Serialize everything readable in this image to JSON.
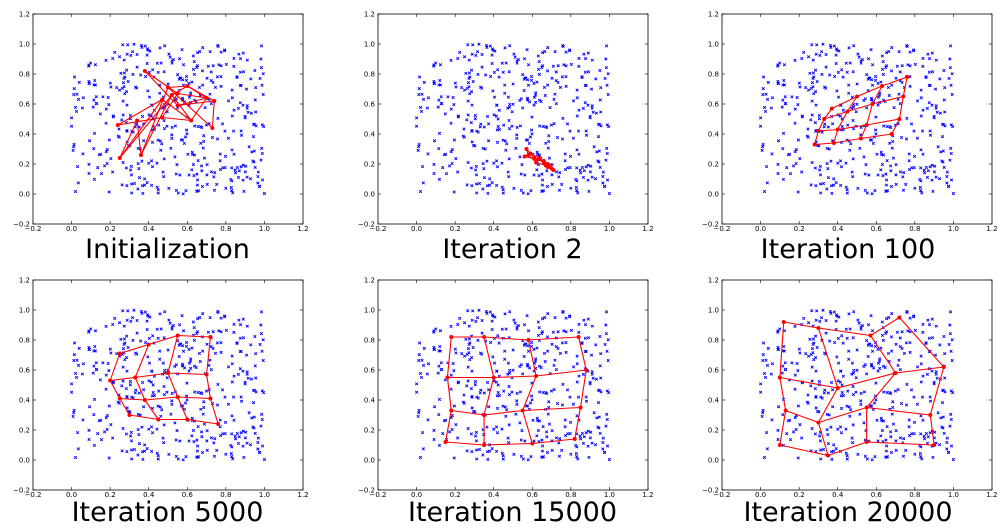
{
  "chart_data": [
    {
      "type": "scatter",
      "title": "Initialization",
      "xlim": [
        -0.2,
        1.2
      ],
      "ylim": [
        -0.2,
        1.2
      ],
      "xticks": [
        "−0.2",
        "0.0",
        "0.2",
        "0.4",
        "0.6",
        "0.8",
        "1.0",
        "1.2"
      ],
      "yticks": [
        "−0.2",
        "0.0",
        "0.2",
        "0.4",
        "0.6",
        "0.8",
        "1.0",
        "1.2"
      ],
      "grid": false,
      "series": [
        {
          "marker": "x",
          "color": "#0000ff",
          "distribution": "uniform",
          "count": 420,
          "x_range": [
            0.0,
            1.0
          ],
          "y_range": [
            0.0,
            1.0
          ]
        },
        {
          "marker": "o-",
          "color": "#ff0000",
          "grid_shape": [
            4,
            4
          ],
          "nodes": [
            [
              0.24,
              0.46
            ],
            [
              0.47,
              0.51
            ],
            [
              0.55,
              0.67
            ],
            [
              0.38,
              0.82
            ],
            [
              0.47,
              0.63
            ],
            [
              0.62,
              0.49
            ],
            [
              0.7,
              0.64
            ],
            [
              0.55,
              0.59
            ],
            [
              0.25,
              0.24
            ],
            [
              0.52,
              0.66
            ],
            [
              0.6,
              0.72
            ],
            [
              0.74,
              0.62
            ],
            [
              0.34,
              0.49
            ],
            [
              0.36,
              0.26
            ],
            [
              0.5,
              0.71
            ],
            [
              0.73,
              0.44
            ]
          ]
        }
      ]
    },
    {
      "type": "scatter",
      "title": "Iteration 2",
      "xlim": [
        -0.2,
        1.2
      ],
      "ylim": [
        -0.2,
        1.2
      ],
      "xticks": [
        "−0.2",
        "0.0",
        "0.2",
        "0.4",
        "0.6",
        "0.8",
        "1.0",
        "1.2"
      ],
      "yticks": [
        "−0.2",
        "0.0",
        "0.2",
        "0.4",
        "0.6",
        "0.8",
        "1.0",
        "1.2"
      ],
      "grid": false,
      "series": [
        {
          "marker": "x",
          "color": "#0000ff",
          "distribution": "uniform",
          "count": 420,
          "x_range": [
            0.0,
            1.0
          ],
          "y_range": [
            0.0,
            1.0
          ]
        },
        {
          "marker": "o-",
          "color": "#ff0000",
          "grid_shape": [
            4,
            4
          ],
          "nodes": [
            [
              0.57,
              0.3
            ],
            [
              0.61,
              0.24
            ],
            [
              0.66,
              0.22
            ],
            [
              0.69,
              0.19
            ],
            [
              0.58,
              0.26
            ],
            [
              0.62,
              0.21
            ],
            [
              0.67,
              0.19
            ],
            [
              0.7,
              0.17
            ],
            [
              0.56,
              0.25
            ],
            [
              0.63,
              0.23
            ],
            [
              0.68,
              0.2
            ],
            [
              0.71,
              0.16
            ],
            [
              0.59,
              0.27
            ],
            [
              0.64,
              0.24
            ],
            [
              0.66,
              0.21
            ],
            [
              0.68,
              0.18
            ]
          ]
        }
      ]
    },
    {
      "type": "scatter",
      "title": "Iteration 100",
      "xlim": [
        -0.2,
        1.2
      ],
      "ylim": [
        -0.2,
        1.2
      ],
      "xticks": [
        "−0.2",
        "0.0",
        "0.2",
        "0.4",
        "0.6",
        "0.8",
        "1.0",
        "1.2"
      ],
      "yticks": [
        "−0.2",
        "0.0",
        "0.2",
        "0.4",
        "0.6",
        "0.8",
        "1.0",
        "1.2"
      ],
      "grid": false,
      "series": [
        {
          "marker": "x",
          "color": "#0000ff",
          "distribution": "uniform",
          "count": 420,
          "x_range": [
            0.0,
            1.0
          ],
          "y_range": [
            0.0,
            1.0
          ]
        },
        {
          "marker": "o-",
          "color": "#ff0000",
          "grid_shape": [
            4,
            4
          ],
          "nodes": [
            [
              0.28,
              0.33
            ],
            [
              0.38,
              0.34
            ],
            [
              0.52,
              0.37
            ],
            [
              0.68,
              0.4
            ],
            [
              0.3,
              0.42
            ],
            [
              0.4,
              0.43
            ],
            [
              0.55,
              0.46
            ],
            [
              0.72,
              0.5
            ],
            [
              0.33,
              0.5
            ],
            [
              0.45,
              0.55
            ],
            [
              0.58,
              0.6
            ],
            [
              0.74,
              0.65
            ],
            [
              0.37,
              0.57
            ],
            [
              0.5,
              0.65
            ],
            [
              0.63,
              0.72
            ],
            [
              0.76,
              0.78
            ]
          ]
        }
      ]
    },
    {
      "type": "scatter",
      "title": "Iteration 5000",
      "xlim": [
        -0.2,
        1.2
      ],
      "ylim": [
        -0.2,
        1.2
      ],
      "xticks": [
        "−0.2",
        "0.0",
        "0.2",
        "0.4",
        "0.6",
        "0.8",
        "1.0",
        "1.2"
      ],
      "yticks": [
        "−0.2",
        "0.0",
        "0.2",
        "0.4",
        "0.6",
        "0.8",
        "1.0",
        "1.2"
      ],
      "grid": false,
      "series": [
        {
          "marker": "x",
          "color": "#0000ff",
          "distribution": "uniform",
          "count": 420,
          "x_range": [
            0.0,
            1.0
          ],
          "y_range": [
            0.0,
            1.0
          ]
        },
        {
          "marker": "o-",
          "color": "#ff0000",
          "grid_shape": [
            4,
            4
          ],
          "nodes": [
            [
              0.3,
              0.3
            ],
            [
              0.45,
              0.27
            ],
            [
              0.6,
              0.27
            ],
            [
              0.76,
              0.24
            ],
            [
              0.25,
              0.41
            ],
            [
              0.38,
              0.4
            ],
            [
              0.55,
              0.42
            ],
            [
              0.72,
              0.41
            ],
            [
              0.2,
              0.53
            ],
            [
              0.33,
              0.55
            ],
            [
              0.5,
              0.58
            ],
            [
              0.7,
              0.57
            ],
            [
              0.25,
              0.71
            ],
            [
              0.4,
              0.77
            ],
            [
              0.55,
              0.83
            ],
            [
              0.72,
              0.82
            ]
          ]
        }
      ]
    },
    {
      "type": "scatter",
      "title": "Iteration 15000",
      "xlim": [
        -0.2,
        1.2
      ],
      "ylim": [
        -0.2,
        1.2
      ],
      "xticks": [
        "−0.2",
        "0.0",
        "0.2",
        "0.4",
        "0.6",
        "0.8",
        "1.0",
        "1.2"
      ],
      "yticks": [
        "−0.2",
        "0.0",
        "0.2",
        "0.4",
        "0.6",
        "0.8",
        "1.0",
        "1.2"
      ],
      "grid": false,
      "series": [
        {
          "marker": "x",
          "color": "#0000ff",
          "distribution": "uniform",
          "count": 420,
          "x_range": [
            0.0,
            1.0
          ],
          "y_range": [
            0.0,
            1.0
          ]
        },
        {
          "marker": "o-",
          "color": "#ff0000",
          "grid_shape": [
            4,
            4
          ],
          "nodes": [
            [
              0.15,
              0.12
            ],
            [
              0.35,
              0.1
            ],
            [
              0.6,
              0.11
            ],
            [
              0.82,
              0.14
            ],
            [
              0.18,
              0.33
            ],
            [
              0.35,
              0.3
            ],
            [
              0.55,
              0.33
            ],
            [
              0.85,
              0.35
            ],
            [
              0.16,
              0.55
            ],
            [
              0.4,
              0.55
            ],
            [
              0.62,
              0.56
            ],
            [
              0.88,
              0.6
            ],
            [
              0.18,
              0.82
            ],
            [
              0.35,
              0.82
            ],
            [
              0.58,
              0.8
            ],
            [
              0.84,
              0.82
            ]
          ]
        }
      ]
    },
    {
      "type": "scatter",
      "title": "Iteration 20000",
      "xlim": [
        -0.2,
        1.2
      ],
      "ylim": [
        -0.2,
        1.2
      ],
      "xticks": [
        "−0.2",
        "0.0",
        "0.2",
        "0.4",
        "0.6",
        "0.8",
        "1.0",
        "1.2"
      ],
      "yticks": [
        "−0.2",
        "0.0",
        "0.2",
        "0.4",
        "0.6",
        "0.8",
        "1.0",
        "1.2"
      ],
      "grid": false,
      "series": [
        {
          "marker": "x",
          "color": "#0000ff",
          "distribution": "uniform",
          "count": 420,
          "x_range": [
            0.0,
            1.0
          ],
          "y_range": [
            0.0,
            1.0
          ]
        },
        {
          "marker": "o-",
          "color": "#ff0000",
          "grid_shape": [
            4,
            4
          ],
          "nodes": [
            [
              0.1,
              0.1
            ],
            [
              0.35,
              0.03
            ],
            [
              0.55,
              0.12
            ],
            [
              0.9,
              0.1
            ],
            [
              0.13,
              0.33
            ],
            [
              0.3,
              0.25
            ],
            [
              0.55,
              0.35
            ],
            [
              0.88,
              0.3
            ],
            [
              0.1,
              0.55
            ],
            [
              0.4,
              0.48
            ],
            [
              0.7,
              0.58
            ],
            [
              0.95,
              0.62
            ],
            [
              0.12,
              0.92
            ],
            [
              0.3,
              0.88
            ],
            [
              0.57,
              0.83
            ],
            [
              0.72,
              0.95
            ]
          ]
        }
      ]
    }
  ]
}
